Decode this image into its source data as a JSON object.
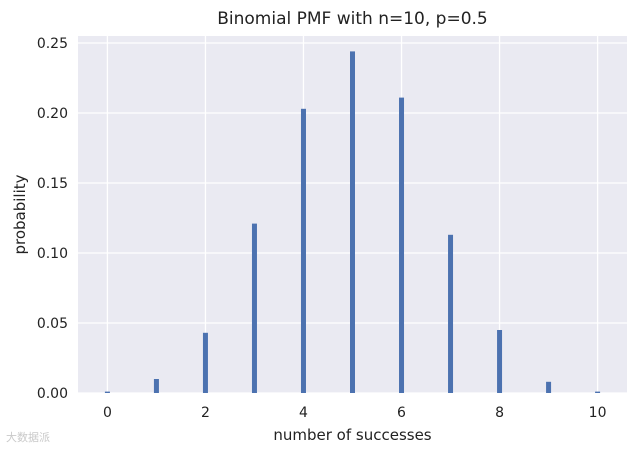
{
  "chart_data": {
    "type": "bar",
    "title": "Binomial PMF with n=10, p=0.5",
    "xlabel": "number of successes",
    "ylabel": "probability",
    "x": [
      0,
      1,
      2,
      3,
      4,
      5,
      6,
      7,
      8,
      9,
      10
    ],
    "values": [
      0.001,
      0.01,
      0.043,
      0.121,
      0.203,
      0.244,
      0.211,
      0.113,
      0.045,
      0.008,
      0.001
    ],
    "xlim": [
      -0.6,
      10.6
    ],
    "ylim": [
      0,
      0.255
    ],
    "xticks": [
      0,
      2,
      4,
      6,
      8,
      10
    ],
    "xtick_labels": [
      "0",
      "2",
      "4",
      "6",
      "8",
      "10"
    ],
    "yticks": [
      0.0,
      0.05,
      0.1,
      0.15,
      0.2,
      0.25
    ],
    "ytick_labels": [
      "0.00",
      "0.05",
      "0.10",
      "0.15",
      "0.20",
      "0.25"
    ],
    "grid": true,
    "colors": {
      "bar": "#4c72b0",
      "plot_background": "#eaeaf2",
      "grid": "#ffffff"
    }
  },
  "watermark": {
    "text": "大数据派"
  }
}
